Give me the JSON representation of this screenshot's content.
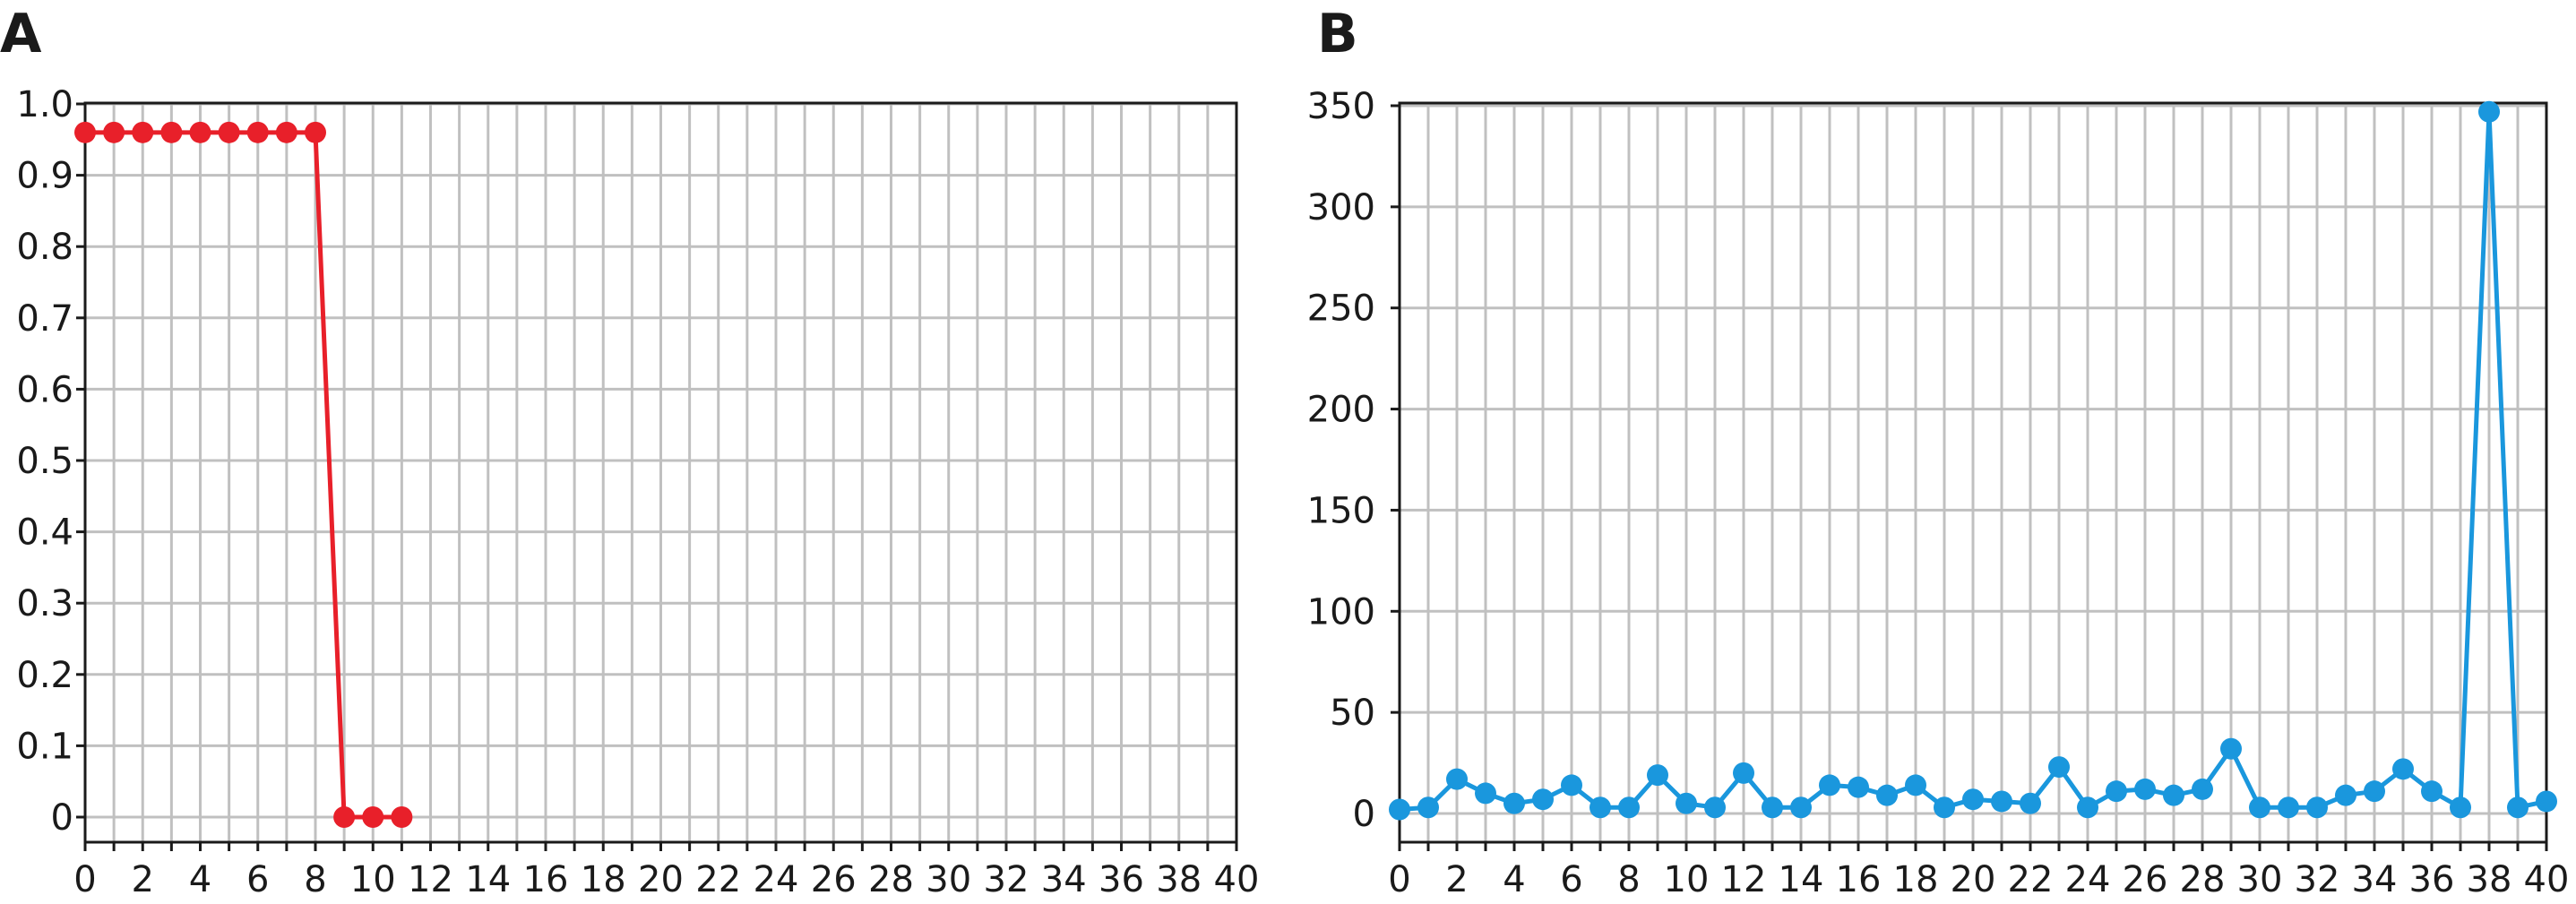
{
  "chart_data": [
    {
      "panel_label": "A",
      "type": "line",
      "color": "#e8202a",
      "xlim": [
        0,
        40
      ],
      "ylim": [
        0,
        1.0
      ],
      "grid": true,
      "x_ticks": [
        0,
        2,
        4,
        6,
        8,
        10,
        12,
        14,
        16,
        18,
        20,
        22,
        24,
        26,
        28,
        30,
        32,
        34,
        36,
        38,
        40
      ],
      "x_tick_labels": [
        "0",
        "2",
        "4",
        "6",
        "8",
        "10",
        "12",
        "14",
        "16",
        "18",
        "20",
        "22",
        "24",
        "26",
        "28",
        "30",
        "32",
        "34",
        "36",
        "38",
        "40"
      ],
      "y_ticks": [
        0,
        0.1,
        0.2,
        0.3,
        0.4,
        0.5,
        0.6,
        0.7,
        0.8,
        0.9,
        1.0
      ],
      "y_tick_labels": [
        "0",
        "0.1",
        "0.2",
        "0.3",
        "0.4",
        "0.5",
        "0.6",
        "0.7",
        "0.8",
        "0.9",
        "1.0"
      ],
      "x": [
        0,
        1,
        2,
        3,
        4,
        5,
        6,
        7,
        8,
        9,
        10,
        11
      ],
      "y": [
        0.96,
        0.96,
        0.96,
        0.96,
        0.96,
        0.96,
        0.96,
        0.96,
        0.96,
        0,
        0,
        0
      ]
    },
    {
      "panel_label": "B",
      "type": "line",
      "color": "#1a97dd",
      "xlim": [
        0,
        40
      ],
      "ylim": [
        0,
        350
      ],
      "grid": true,
      "x_ticks": [
        0,
        2,
        4,
        6,
        8,
        10,
        12,
        14,
        16,
        18,
        20,
        22,
        24,
        26,
        28,
        30,
        32,
        34,
        36,
        38,
        40
      ],
      "x_tick_labels": [
        "0",
        "2",
        "4",
        "6",
        "8",
        "10",
        "12",
        "14",
        "16",
        "18",
        "20",
        "22",
        "24",
        "26",
        "28",
        "30",
        "32",
        "34",
        "36",
        "38",
        "40"
      ],
      "y_ticks": [
        0,
        50,
        100,
        150,
        200,
        250,
        300,
        350
      ],
      "y_tick_labels": [
        "0",
        "50",
        "100",
        "150",
        "200",
        "250",
        "300",
        "350"
      ],
      "x": [
        0,
        1,
        2,
        3,
        4,
        5,
        6,
        7,
        8,
        9,
        10,
        11,
        12,
        13,
        14,
        15,
        16,
        17,
        18,
        19,
        20,
        21,
        22,
        23,
        24,
        25,
        26,
        27,
        28,
        29,
        30,
        31,
        32,
        33,
        34,
        35,
        36,
        37,
        38,
        39,
        40
      ],
      "y": [
        2,
        3,
        17,
        10,
        5,
        7,
        14,
        3,
        3,
        19,
        5,
        3,
        20,
        3,
        3,
        14,
        13,
        9,
        14,
        3,
        7,
        6,
        5,
        23,
        3,
        11,
        12,
        9,
        12,
        32,
        3,
        3,
        3,
        9,
        11,
        22,
        11,
        3,
        347,
        3,
        6
      ]
    }
  ]
}
